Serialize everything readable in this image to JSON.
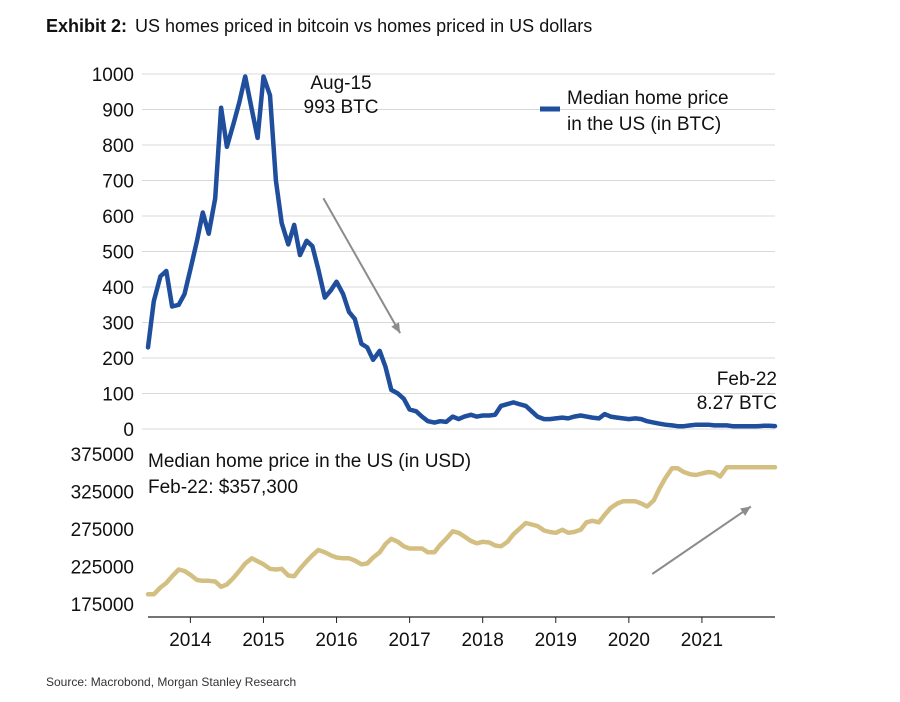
{
  "header": {
    "label": "Exhibit 2:",
    "title": "US homes priced in bitcoin vs homes priced in US dollars"
  },
  "source": "Source: Macrobond, Morgan Stanley Research",
  "colors": {
    "btc_series": "#1f4e9c",
    "usd_series": "#d4bf82",
    "grid": "#d9d9d9",
    "arrow": "#8c8c8c"
  },
  "chart_data": [
    {
      "type": "line",
      "legend": [
        "Median home price",
        "in the US (in BTC)"
      ],
      "legend_position": "top-right",
      "ylim": [
        0,
        1000
      ],
      "yticks": [
        "1000",
        "900",
        "800",
        "700",
        "600",
        "500",
        "400",
        "300",
        "200",
        "100",
        "0"
      ],
      "grid": true,
      "annotations": [
        {
          "lines": [
            "Aug-15",
            "993 BTC"
          ],
          "x": 2015.58,
          "y": 993
        },
        {
          "lines": [
            "Feb-22",
            "8.27 BTC"
          ],
          "x": 2022.08,
          "y": 8.27
        },
        {
          "type": "arrow",
          "from": [
            2015.9,
            650
          ],
          "to": [
            2016.95,
            270
          ]
        }
      ],
      "series": [
        {
          "name": "Median home price in the US (in BTC)",
          "x": [
            2013.5,
            2013.58,
            2013.67,
            2013.75,
            2013.83,
            2013.92,
            2014.0,
            2014.08,
            2014.17,
            2014.25,
            2014.33,
            2014.42,
            2014.5,
            2014.58,
            2014.67,
            2014.75,
            2014.83,
            2014.92,
            2015.0,
            2015.08,
            2015.17,
            2015.25,
            2015.33,
            2015.42,
            2015.5,
            2015.58,
            2015.67,
            2015.75,
            2015.83,
            2015.92,
            2016.0,
            2016.08,
            2016.17,
            2016.25,
            2016.33,
            2016.42,
            2016.5,
            2016.58,
            2016.67,
            2016.75,
            2016.83,
            2016.92,
            2017.0,
            2017.08,
            2017.17,
            2017.25,
            2017.33,
            2017.42,
            2017.5,
            2017.58,
            2017.67,
            2017.75,
            2017.83,
            2017.92,
            2018.0,
            2018.08,
            2018.17,
            2018.25,
            2018.33,
            2018.42,
            2018.5,
            2018.58,
            2018.67,
            2018.75,
            2018.83,
            2018.92,
            2019.0,
            2019.08,
            2019.17,
            2019.25,
            2019.33,
            2019.42,
            2019.5,
            2019.58,
            2019.67,
            2019.75,
            2019.83,
            2019.92,
            2020.0,
            2020.08,
            2020.17,
            2020.25,
            2020.33,
            2020.42,
            2020.5,
            2020.58,
            2020.67,
            2020.75,
            2020.83,
            2020.92,
            2021.0,
            2021.08,
            2021.17,
            2021.25,
            2021.33,
            2021.42,
            2021.5,
            2021.58,
            2021.67,
            2021.75,
            2021.83,
            2021.92,
            2022.0,
            2022.08
          ],
          "values": [
            230,
            360,
            430,
            445,
            345,
            350,
            380,
            450,
            530,
            610,
            550,
            650,
            905,
            795,
            860,
            920,
            993,
            900,
            820,
            993,
            940,
            700,
            580,
            520,
            575,
            490,
            530,
            515,
            450,
            370,
            390,
            415,
            380,
            330,
            310,
            240,
            230,
            195,
            220,
            175,
            110,
            100,
            85,
            55,
            50,
            35,
            22,
            18,
            22,
            20,
            35,
            28,
            35,
            40,
            35,
            38,
            38,
            40,
            65,
            70,
            75,
            70,
            65,
            50,
            35,
            28,
            28,
            30,
            32,
            30,
            35,
            38,
            35,
            32,
            30,
            42,
            35,
            32,
            30,
            28,
            30,
            28,
            22,
            18,
            15,
            12,
            10,
            8,
            8,
            10,
            12,
            12,
            12,
            10,
            10,
            10,
            8,
            8,
            8,
            8,
            8,
            9,
            9,
            8.27
          ]
        }
      ]
    },
    {
      "type": "line",
      "legend": [
        "Median home price in the US (in USD)",
        "Feb-22: $357,300"
      ],
      "ylim": [
        175000,
        375000
      ],
      "yticks": [
        "375000",
        "325000",
        "275000",
        "225000",
        "175000"
      ],
      "grid": false,
      "annotations": [
        {
          "type": "arrow",
          "from": [
            2020.4,
            215000
          ],
          "to": [
            2021.75,
            305000
          ]
        }
      ],
      "x_ticks": [
        "2014",
        "2015",
        "2016",
        "2017",
        "2018",
        "2019",
        "2020",
        "2021"
      ],
      "series": [
        {
          "name": "Median home price in the US (in USD)",
          "x": [
            2013.5,
            2013.58,
            2013.67,
            2013.75,
            2013.83,
            2013.92,
            2014.0,
            2014.08,
            2014.17,
            2014.25,
            2014.33,
            2014.42,
            2014.5,
            2014.58,
            2014.67,
            2014.75,
            2014.83,
            2014.92,
            2015.0,
            2015.08,
            2015.17,
            2015.25,
            2015.33,
            2015.42,
            2015.5,
            2015.58,
            2015.67,
            2015.75,
            2015.83,
            2015.92,
            2016.0,
            2016.08,
            2016.17,
            2016.25,
            2016.33,
            2016.42,
            2016.5,
            2016.58,
            2016.67,
            2016.75,
            2016.83,
            2016.92,
            2017.0,
            2017.08,
            2017.17,
            2017.25,
            2017.33,
            2017.42,
            2017.5,
            2017.58,
            2017.67,
            2017.75,
            2017.83,
            2017.92,
            2018.0,
            2018.08,
            2018.17,
            2018.25,
            2018.33,
            2018.42,
            2018.5,
            2018.58,
            2018.67,
            2018.75,
            2018.83,
            2018.92,
            2019.0,
            2019.08,
            2019.17,
            2019.25,
            2019.33,
            2019.42,
            2019.5,
            2019.58,
            2019.67,
            2019.75,
            2019.83,
            2019.92,
            2020.0,
            2020.08,
            2020.17,
            2020.25,
            2020.33,
            2020.42,
            2020.5,
            2020.58,
            2020.67,
            2020.75,
            2020.83,
            2020.92,
            2021.0,
            2021.08,
            2021.17,
            2021.25,
            2021.33,
            2021.42,
            2021.5,
            2021.58,
            2021.67,
            2021.75,
            2021.83,
            2021.92,
            2022.0,
            2022.08
          ],
          "values": [
            188000,
            188000,
            197000,
            203000,
            212000,
            221000,
            219000,
            214000,
            207000,
            206000,
            206000,
            205000,
            198000,
            201000,
            210000,
            219000,
            229000,
            236000,
            232000,
            228000,
            222000,
            221000,
            222000,
            213000,
            212000,
            222000,
            232000,
            240000,
            247000,
            244000,
            240000,
            237000,
            236000,
            236000,
            233000,
            228000,
            229000,
            237000,
            244000,
            255000,
            262000,
            258000,
            252000,
            249000,
            249000,
            249000,
            244000,
            244000,
            254000,
            262000,
            272000,
            270000,
            265000,
            259000,
            256000,
            258000,
            257000,
            253000,
            252000,
            258000,
            268000,
            275000,
            283000,
            281000,
            279000,
            273000,
            271000,
            270000,
            274000,
            270000,
            271000,
            274000,
            284000,
            286000,
            284000,
            294000,
            303000,
            309000,
            312000,
            312000,
            312000,
            309000,
            305000,
            313000,
            329000,
            343000,
            356000,
            356000,
            351000,
            348000,
            347000,
            349000,
            351000,
            350000,
            345000,
            357300,
            357300,
            357300,
            357300,
            357300,
            357300,
            357300,
            357300,
            357300
          ]
        }
      ]
    }
  ]
}
